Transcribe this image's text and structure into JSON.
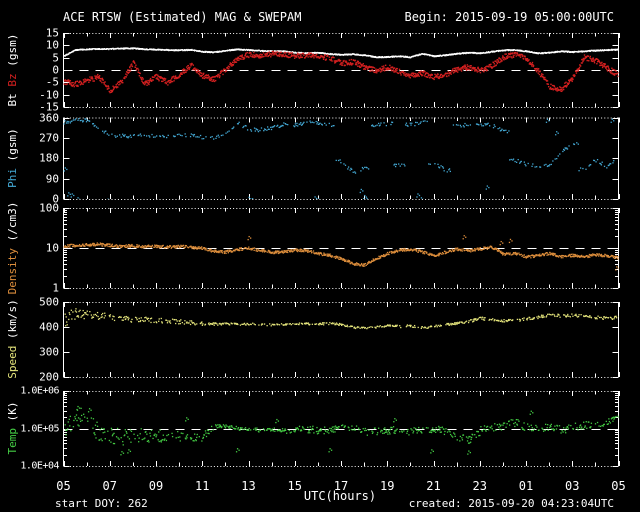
{
  "header": {
    "title": "ACE RTSW (Estimated) MAG & SWEPAM",
    "begin": "Begin: 2015-09-19 05:00:00UTC"
  },
  "footer": {
    "start_doy": "start DOY: 262",
    "created": "created: 2015-09-20 04:23:04UTC"
  },
  "colors": {
    "background": "#000000",
    "frame": "#ffffff",
    "dashed": "#ffffff",
    "text": "#ffffff",
    "bt": "#ffffff",
    "bz": "#d42020",
    "phi": "#44aad6",
    "density": "#dd8e3c",
    "speed": "#e6e67c",
    "temp": "#44cc44"
  },
  "x_axis": {
    "label": "UTC(hours)",
    "start_hour": 5,
    "end_hour": 29,
    "tick_hours": [
      5,
      7,
      9,
      11,
      13,
      15,
      17,
      19,
      21,
      23,
      25,
      27,
      29
    ],
    "tick_labels": [
      "05",
      "07",
      "09",
      "11",
      "13",
      "15",
      "17",
      "19",
      "21",
      "23",
      "01",
      "03",
      "05"
    ]
  },
  "panels": [
    {
      "id": "mag",
      "scale": "linear",
      "ylim": [
        -15,
        15
      ],
      "dashed_at": 0,
      "tick_values": [
        15,
        10,
        5,
        0,
        -5,
        -10,
        -15
      ],
      "tick_labels": [
        "15",
        "10",
        "5",
        "0",
        "-5",
        "-10",
        "-15"
      ],
      "title_parts": [
        {
          "text": "Bt ",
          "color": "bt"
        },
        {
          "text": "Bz",
          "color": "bz"
        },
        {
          "text": " (gsm)",
          "color": "text"
        }
      ]
    },
    {
      "id": "phi",
      "scale": "linear",
      "ylim": [
        0,
        360
      ],
      "dashed_at": null,
      "tick_values": [
        360,
        270,
        180,
        90,
        0
      ],
      "tick_labels": [
        "360",
        "270",
        "180",
        "90",
        "0"
      ],
      "title_parts": [
        {
          "text": "Phi",
          "color": "phi"
        },
        {
          "text": " (gsm)",
          "color": "text"
        }
      ]
    },
    {
      "id": "density",
      "scale": "log",
      "ylim": [
        1,
        100
      ],
      "dashed_at": 10,
      "tick_values": [
        100,
        10,
        1
      ],
      "tick_labels": [
        "100",
        "10",
        "1"
      ],
      "title_parts": [
        {
          "text": "Density",
          "color": "density"
        },
        {
          "text": " (/cm3)",
          "color": "text"
        }
      ]
    },
    {
      "id": "speed",
      "scale": "linear",
      "ylim": [
        200,
        500
      ],
      "dashed_at": null,
      "tick_values": [
        500,
        400,
        300,
        200
      ],
      "tick_labels": [
        "500",
        "400",
        "300",
        "200"
      ],
      "title_parts": [
        {
          "text": "Speed",
          "color": "speed"
        },
        {
          "text": " (km/s)",
          "color": "text"
        }
      ]
    },
    {
      "id": "temp",
      "scale": "log",
      "ylim": [
        10000,
        1000000
      ],
      "dashed_at": 100000,
      "tick_values": [
        1000000,
        100000,
        10000
      ],
      "tick_labels": [
        "1.0E+06",
        "1.0E+05",
        "1.0E+04"
      ],
      "title_parts": [
        {
          "text": "Temp",
          "color": "temp"
        },
        {
          "text": " (K)",
          "color": "text"
        }
      ]
    }
  ],
  "chart_data": {
    "type": "scatter",
    "title": "ACE RTSW (Estimated) MAG & SWEPAM",
    "xlabel": "UTC(hours)",
    "x_start": 5,
    "x_end": 29,
    "sample_step_hours": 0.5,
    "series": [
      {
        "name": "Bt",
        "panel": 0,
        "color": "bt",
        "units": "nT",
        "pph": 90,
        "gap": 0.02,
        "size": 1.1,
        "spread": 0.25,
        "spread_mode": "abs",
        "values": [
          5.8,
          8.3,
          8.6,
          8.7,
          8.7,
          8.9,
          9.0,
          8.6,
          8.5,
          8.3,
          8.2,
          8.4,
          7.6,
          7.4,
          8.0,
          8.6,
          8.3,
          8.0,
          7.8,
          7.8,
          7.3,
          7.0,
          7.2,
          6.7,
          6.4,
          6.6,
          6.2,
          5.4,
          5.5,
          5.8,
          5.4,
          6.8,
          5.8,
          6.2,
          6.8,
          7.2,
          7.0,
          7.6,
          8.2,
          8.3,
          7.8,
          7.0,
          7.2,
          7.8,
          7.5,
          7.8,
          8.1,
          8.3,
          8.5
        ]
      },
      {
        "name": "Bz",
        "panel": 0,
        "color": "bz",
        "units": "nT",
        "pph": 60,
        "gap": 0.1,
        "size": 1.4,
        "spread": 1.1,
        "spread_mode": "abs",
        "values": [
          -4.5,
          -5.5,
          -4.0,
          -2.5,
          -8.0,
          -4.5,
          3.0,
          -5.5,
          -2.5,
          -4.8,
          -1.5,
          2.0,
          -2.0,
          -3.5,
          0.5,
          5.0,
          6.5,
          6.0,
          6.8,
          6.5,
          6.0,
          6.2,
          6.0,
          5.0,
          3.0,
          3.5,
          1.5,
          0.0,
          1.5,
          -0.5,
          -2.0,
          -1.0,
          -2.5,
          -1.5,
          0.5,
          1.5,
          0.0,
          2.0,
          5.5,
          6.5,
          5.0,
          0.0,
          -6.5,
          -7.5,
          -3.0,
          5.5,
          4.0,
          1.0,
          -2.0
        ]
      },
      {
        "name": "Phi",
        "panel": 1,
        "color": "phi",
        "units": "deg",
        "pph": 30,
        "gap": 0.5,
        "size": 1.3,
        "spread": 8,
        "spread_mode": "abs",
        "jump_threshold": 60,
        "values": [
          340,
          352,
          350,
          310,
          285,
          282,
          280,
          284,
          278,
          281,
          284,
          286,
          276,
          272,
          295,
          340,
          310,
          308,
          318,
          332,
          328,
          342,
          338,
          330,
          170,
          120,
          140,
          330,
          335,
          150,
          330,
          340,
          160,
          130,
          325,
          330,
          332,
          328,
          300,
          175,
          155,
          148,
          150,
          210,
          250,
          135,
          175,
          145,
          195
        ],
        "extras": [
          [
            5.05,
            140
          ],
          [
            5.2,
            30
          ],
          [
            5.35,
            25
          ],
          [
            5.6,
            8
          ],
          [
            6.9,
            2
          ],
          [
            13.0,
            10
          ],
          [
            13.15,
            4
          ],
          [
            15.85,
            12
          ],
          [
            16.0,
            3
          ],
          [
            17.85,
            45
          ],
          [
            18.0,
            18
          ],
          [
            18.1,
            5
          ],
          [
            20.3,
            25
          ],
          [
            20.45,
            8
          ],
          [
            23.3,
            60
          ],
          [
            25.9,
            355
          ],
          [
            26.3,
            300
          ],
          [
            28.5,
            0
          ],
          [
            28.7,
            355
          ]
        ]
      },
      {
        "name": "Density",
        "panel": 2,
        "color": "density",
        "units": "/cm3",
        "pph": 60,
        "gap": 0.2,
        "size": 1.3,
        "spread": 0.035,
        "spread_mode": "dex",
        "values": [
          11.5,
          12.0,
          12.5,
          12.8,
          12.0,
          11.5,
          11.8,
          11.2,
          11.5,
          11.0,
          11.3,
          10.8,
          10.2,
          8.5,
          8.2,
          9.5,
          10.2,
          9.0,
          8.0,
          8.3,
          9.2,
          8.8,
          7.5,
          6.8,
          5.5,
          4.2,
          3.9,
          5.5,
          7.5,
          9.2,
          9.6,
          8.2,
          6.5,
          8.2,
          9.6,
          8.8,
          9.8,
          10.8,
          7.2,
          7.6,
          6.2,
          6.6,
          7.6,
          6.2,
          6.8,
          6.3,
          7.0,
          6.6,
          5.8
        ],
        "extras": [
          [
            13.0,
            20
          ],
          [
            22.3,
            21
          ],
          [
            23.9,
            15
          ],
          [
            24.3,
            17
          ],
          [
            28.9,
            3.5
          ]
        ]
      },
      {
        "name": "Speed",
        "panel": 3,
        "color": "speed",
        "units": "km/s",
        "pph": 45,
        "gap": 0.5,
        "size": 1.3,
        "spread_mode": "abs",
        "spread": [
          28,
          22,
          18,
          15,
          13,
          12,
          11,
          10,
          10,
          9,
          9,
          8,
          7,
          5,
          4,
          4,
          4,
          4,
          4,
          4,
          4,
          5,
          5,
          5,
          5,
          4,
          4,
          4,
          4,
          5,
          5,
          5,
          5,
          4,
          4,
          5,
          6,
          5,
          5,
          5,
          6,
          6,
          7,
          6,
          6,
          5,
          6,
          6,
          6
        ],
        "values": [
          430,
          455,
          452,
          448,
          442,
          436,
          431,
          433,
          428,
          426,
          423,
          419,
          416,
          414,
          416,
          413,
          415,
          413,
          411,
          413,
          414,
          416,
          414,
          417,
          413,
          401,
          398,
          403,
          408,
          404,
          407,
          399,
          406,
          412,
          417,
          424,
          438,
          431,
          427,
          429,
          434,
          441,
          451,
          446,
          449,
          446,
          441,
          437,
          442
        ]
      },
      {
        "name": "Temp",
        "panel": 4,
        "color": "temp",
        "units": "K",
        "pph": 45,
        "gap": 0.45,
        "size": 1.3,
        "spread_mode": "dex",
        "spread": [
          0.35,
          0.3,
          0.28,
          0.25,
          0.22,
          0.25,
          0.2,
          0.18,
          0.18,
          0.16,
          0.15,
          0.15,
          0.12,
          0.06,
          0.05,
          0.05,
          0.05,
          0.06,
          0.05,
          0.06,
          0.1,
          0.1,
          0.1,
          0.08,
          0.08,
          0.08,
          0.1,
          0.1,
          0.1,
          0.1,
          0.12,
          0.1,
          0.1,
          0.1,
          0.1,
          0.1,
          0.12,
          0.1,
          0.1,
          0.12,
          0.1,
          0.1,
          0.12,
          0.1,
          0.1,
          0.1,
          0.1,
          0.08,
          0.08
        ],
        "values": [
          90000,
          250000,
          150000,
          90000,
          70000,
          60000,
          70000,
          65000,
          70000,
          65000,
          68000,
          60000,
          62000,
          115000,
          118000,
          105000,
          100000,
          95000,
          100000,
          90000,
          95000,
          100000,
          90000,
          95000,
          110000,
          105000,
          85000,
          88000,
          92000,
          95000,
          90000,
          95000,
          100000,
          90000,
          62000,
          50000,
          90000,
          110000,
          120000,
          150000,
          110000,
          105000,
          120000,
          95000,
          110000,
          130000,
          120000,
          160000,
          200000
        ],
        "extras": [
          [
            5.6,
            400000
          ],
          [
            6.1,
            350000
          ],
          [
            7.5,
            25000
          ],
          [
            7.8,
            28000
          ],
          [
            12.5,
            30000
          ],
          [
            16.5,
            30000
          ],
          [
            20.9,
            28000
          ],
          [
            22.5,
            26000
          ],
          [
            10.3,
            200000
          ],
          [
            14.2,
            180000
          ],
          [
            19.3,
            190000
          ],
          [
            25.2,
            300000
          ]
        ]
      }
    ]
  }
}
